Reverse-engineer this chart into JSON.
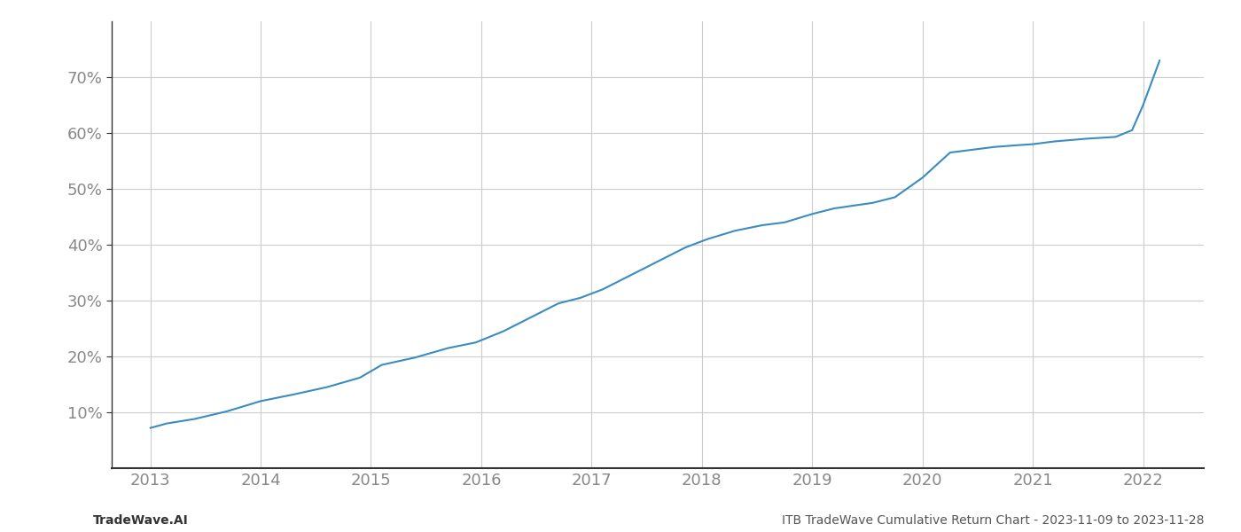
{
  "x_values": [
    2013.0,
    2013.15,
    2013.4,
    2013.7,
    2014.0,
    2014.3,
    2014.6,
    2014.9,
    2015.1,
    2015.4,
    2015.7,
    2015.95,
    2016.2,
    2016.5,
    2016.7,
    2016.9,
    2017.1,
    2017.35,
    2017.6,
    2017.85,
    2018.05,
    2018.3,
    2018.55,
    2018.75,
    2019.0,
    2019.2,
    2019.55,
    2019.75,
    2020.0,
    2020.25,
    2020.45,
    2020.65,
    2020.85,
    2021.0,
    2021.2,
    2021.5,
    2021.75,
    2021.9,
    2022.0,
    2022.15
  ],
  "y_values": [
    7.2,
    8.0,
    8.8,
    10.2,
    12.0,
    13.2,
    14.5,
    16.2,
    18.5,
    19.8,
    21.5,
    22.5,
    24.5,
    27.5,
    29.5,
    30.5,
    32.0,
    34.5,
    37.0,
    39.5,
    41.0,
    42.5,
    43.5,
    44.0,
    45.5,
    46.5,
    47.5,
    48.5,
    52.0,
    56.5,
    57.0,
    57.5,
    57.8,
    58.0,
    58.5,
    59.0,
    59.3,
    60.5,
    65.0,
    73.0
  ],
  "line_color": "#3a8cc1",
  "line_width": 1.5,
  "background_color": "#ffffff",
  "grid_color": "#cccccc",
  "x_tick_labels": [
    "2013",
    "2014",
    "2015",
    "2016",
    "2017",
    "2018",
    "2019",
    "2020",
    "2021",
    "2022"
  ],
  "x_tick_positions": [
    2013,
    2014,
    2015,
    2016,
    2017,
    2018,
    2019,
    2020,
    2021,
    2022
  ],
  "y_ticks": [
    10,
    20,
    30,
    40,
    50,
    60,
    70
  ],
  "xlim": [
    2012.65,
    2022.55
  ],
  "ylim": [
    0,
    80
  ],
  "footer_left": "TradeWave.AI",
  "footer_right": "ITB TradeWave Cumulative Return Chart - 2023-11-09 to 2023-11-28",
  "footer_fontsize": 10,
  "tick_fontsize": 13,
  "spine_color": "#333333",
  "tick_color": "#888888",
  "label_color": "#888888"
}
